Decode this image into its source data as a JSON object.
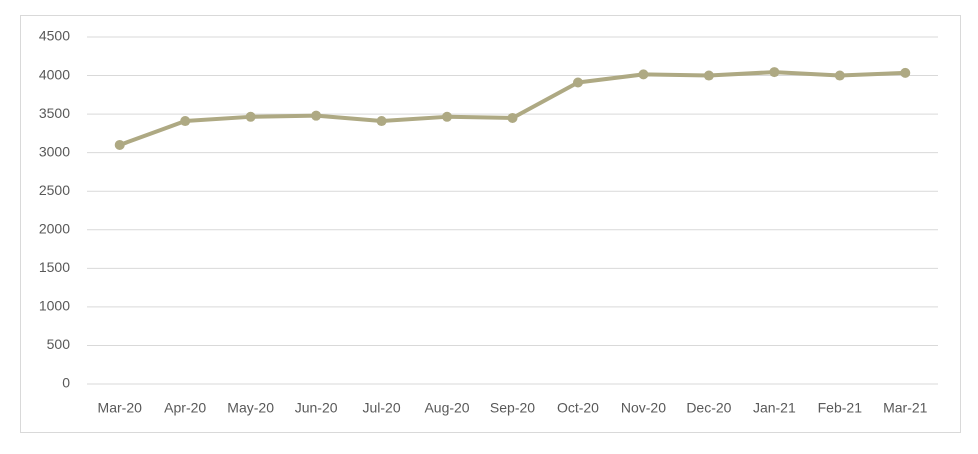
{
  "chart_data": {
    "type": "line",
    "categories": [
      "Mar-20",
      "Apr-20",
      "May-20",
      "Jun-20",
      "Jul-20",
      "Aug-20",
      "Sep-20",
      "Oct-20",
      "Nov-20",
      "Dec-20",
      "Jan-21",
      "Feb-21",
      "Mar-21"
    ],
    "series": [
      {
        "color": "#aea983",
        "values": [
          3100,
          3410,
          3465,
          3480,
          3410,
          3465,
          3450,
          3910,
          4015,
          4000,
          4045,
          4000,
          4035
        ]
      }
    ],
    "ylim": [
      0,
      4500
    ],
    "yticks": [
      0,
      500,
      1000,
      1500,
      2000,
      2500,
      3000,
      3500,
      4000,
      4500
    ],
    "grid": true
  }
}
